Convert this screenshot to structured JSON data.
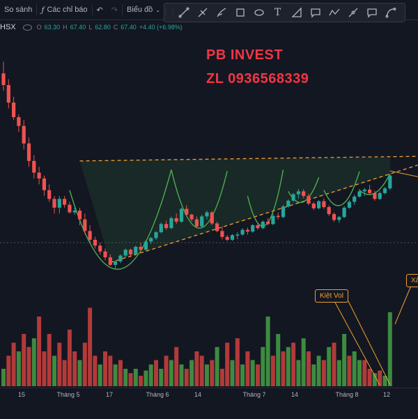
{
  "toolbar": {
    "compare_label": "So sánh",
    "indicators_label": "Các chỉ báo",
    "chart_type_label": "Biểu đồ"
  },
  "legend": {
    "symbol": "HSX",
    "open_key": "O",
    "open": "63.30",
    "high_key": "H",
    "high": "67.40",
    "low_key": "L",
    "low": "62.80",
    "close_key": "C",
    "close": "67.40",
    "change": "+4.40 (+6.98%)"
  },
  "watermark": {
    "line1": "PB INVEST",
    "line2": "ZL 0936568339"
  },
  "annotations": {
    "kiet_vol": "Kiệt Vol",
    "xa": "Xả"
  },
  "xaxis": [
    "15",
    "Tháng 5",
    "17",
    "Tháng 6",
    "14",
    "Tháng 7",
    "14",
    "Tháng 8",
    "12"
  ],
  "colors": {
    "up": "#26a69a",
    "down": "#ef5350",
    "vol_up": "#3d8b40",
    "vol_down": "#b33a3a",
    "trend": "#f0a030",
    "arc": "#4caf50"
  },
  "chart_data": {
    "type": "candlestick",
    "price_range": [
      40,
      80
    ],
    "candles": [
      [
        74,
        76,
        71,
        72
      ],
      [
        72,
        73,
        68,
        69
      ],
      [
        69,
        70,
        66,
        66.5
      ],
      [
        66.5,
        67,
        64,
        65
      ],
      [
        65,
        66,
        61,
        62
      ],
      [
        62,
        63,
        58,
        59
      ],
      [
        59,
        60,
        56,
        57
      ],
      [
        57,
        58,
        55,
        56
      ],
      [
        56,
        56.5,
        53,
        54
      ],
      [
        54,
        55,
        52,
        52.5
      ],
      [
        52.5,
        53,
        50,
        51
      ],
      [
        51,
        53,
        50,
        52.5
      ],
      [
        52.5,
        53,
        51,
        51.5
      ],
      [
        51.5,
        52,
        50,
        50.2
      ],
      [
        50.2,
        51,
        49.8,
        50.5
      ],
      [
        50.5,
        51,
        48,
        49
      ],
      [
        49,
        50,
        46.5,
        47
      ],
      [
        47,
        48,
        45,
        45.5
      ],
      [
        45.5,
        46,
        44,
        44.5
      ],
      [
        44.5,
        45,
        43,
        43.5
      ],
      [
        43.5,
        44,
        42,
        42.5
      ],
      [
        42.5,
        43,
        41,
        41.2
      ],
      [
        41.2,
        42,
        40.5,
        41.8
      ],
      [
        41.8,
        43,
        41.5,
        42.8
      ],
      [
        42.8,
        44,
        42.5,
        43.8
      ],
      [
        43.8,
        44,
        42.5,
        43
      ],
      [
        43,
        44.5,
        42.8,
        44.3
      ],
      [
        44.3,
        45,
        43.5,
        43.8
      ],
      [
        43.8,
        45.5,
        43.6,
        45.2
      ],
      [
        45.2,
        46,
        44.8,
        45.8
      ],
      [
        45.8,
        47,
        45.5,
        46.8
      ],
      [
        46.8,
        48.5,
        46.6,
        48.2
      ],
      [
        48.2,
        48.8,
        47.2,
        47.5
      ],
      [
        47.5,
        49.5,
        47.3,
        49.2
      ],
      [
        49.2,
        50,
        48.2,
        48.6
      ],
      [
        48.6,
        51,
        48.4,
        50.8
      ],
      [
        50.8,
        51.4,
        49.6,
        49.8
      ],
      [
        49.8,
        50,
        48.6,
        49
      ],
      [
        49,
        49.5,
        47.5,
        47.8
      ],
      [
        47.8,
        49.8,
        47.6,
        49.5
      ],
      [
        49.5,
        50.5,
        49,
        50.2
      ],
      [
        50.2,
        50.4,
        48,
        48.3
      ],
      [
        48.3,
        48.6,
        46.8,
        47
      ],
      [
        47,
        47.8,
        45.6,
        46
      ],
      [
        46,
        46.3,
        45.3,
        45.5
      ],
      [
        45.5,
        46.5,
        45.3,
        46.3
      ],
      [
        46.3,
        46.8,
        45.6,
        46.4
      ],
      [
        46.4,
        47.5,
        46.2,
        47.2
      ],
      [
        47.2,
        47.6,
        46.4,
        46.9
      ],
      [
        46.9,
        48.2,
        46.7,
        48
      ],
      [
        48,
        48.4,
        47.2,
        47.5
      ],
      [
        47.5,
        48.8,
        47.3,
        48.6
      ],
      [
        48.6,
        49.2,
        48,
        48.2
      ],
      [
        48.2,
        50,
        48,
        49.6
      ],
      [
        49.6,
        50.2,
        49,
        49.4
      ],
      [
        49.4,
        51.5,
        49.2,
        51.2
      ],
      [
        51.2,
        52.4,
        51,
        52.2
      ],
      [
        52.2,
        53.5,
        52,
        53.3
      ],
      [
        53.3,
        54.2,
        52.6,
        53.8
      ],
      [
        53.8,
        54.2,
        52.6,
        53
      ],
      [
        53,
        53.4,
        51.4,
        51.7
      ],
      [
        51.7,
        52,
        50.6,
        50.9
      ],
      [
        50.9,
        52.3,
        50.7,
        52.1
      ],
      [
        52.1,
        52.6,
        50.8,
        51.1
      ],
      [
        51.1,
        51.4,
        49.6,
        49.9
      ],
      [
        49.9,
        50.2,
        48.6,
        48.9
      ],
      [
        48.9,
        49.6,
        48.4,
        49.4
      ],
      [
        49.4,
        51.3,
        49.2,
        51
      ],
      [
        51,
        52.3,
        50.8,
        52
      ],
      [
        52,
        53.2,
        51.5,
        52.9
      ],
      [
        52.9,
        54.2,
        52.7,
        53.8
      ],
      [
        53.8,
        54.4,
        53,
        54.1
      ],
      [
        54.1,
        54.9,
        53.2,
        53.5
      ],
      [
        53.5,
        53.9,
        52.2,
        52.5
      ],
      [
        52.5,
        53.8,
        52.3,
        53.5
      ],
      [
        53.5,
        54.6,
        53.3,
        54.3
      ],
      [
        54.3,
        56.8,
        54,
        56.5
      ]
    ],
    "volumes": [
      [
        0.2,
        1
      ],
      [
        0.35,
        0
      ],
      [
        0.5,
        0
      ],
      [
        0.4,
        1
      ],
      [
        0.6,
        0
      ],
      [
        0.45,
        0
      ],
      [
        0.55,
        1
      ],
      [
        0.8,
        0
      ],
      [
        0.4,
        0
      ],
      [
        0.6,
        0
      ],
      [
        0.35,
        1
      ],
      [
        0.5,
        0
      ],
      [
        0.3,
        0
      ],
      [
        0.65,
        0
      ],
      [
        0.4,
        0
      ],
      [
        0.3,
        1
      ],
      [
        0.5,
        0
      ],
      [
        0.9,
        0
      ],
      [
        0.35,
        0
      ],
      [
        0.25,
        1
      ],
      [
        0.4,
        0
      ],
      [
        0.35,
        0
      ],
      [
        0.25,
        1
      ],
      [
        0.3,
        0
      ],
      [
        0.2,
        1
      ],
      [
        0.15,
        0
      ],
      [
        0.2,
        1
      ],
      [
        0.12,
        0
      ],
      [
        0.18,
        1
      ],
      [
        0.25,
        1
      ],
      [
        0.3,
        0
      ],
      [
        0.2,
        1
      ],
      [
        0.35,
        0
      ],
      [
        0.3,
        1
      ],
      [
        0.45,
        0
      ],
      [
        0.25,
        1
      ],
      [
        0.2,
        0
      ],
      [
        0.3,
        1
      ],
      [
        0.4,
        0
      ],
      [
        0.35,
        0
      ],
      [
        0.25,
        1
      ],
      [
        0.3,
        0
      ],
      [
        0.45,
        1
      ],
      [
        0.2,
        0
      ],
      [
        0.5,
        0
      ],
      [
        0.3,
        1
      ],
      [
        0.55,
        0
      ],
      [
        0.25,
        1
      ],
      [
        0.4,
        0
      ],
      [
        0.3,
        1
      ],
      [
        0.25,
        0
      ],
      [
        0.45,
        1
      ],
      [
        0.8,
        1
      ],
      [
        0.35,
        0
      ],
      [
        0.6,
        1
      ],
      [
        0.4,
        0
      ],
      [
        0.45,
        1
      ],
      [
        0.5,
        0
      ],
      [
        0.3,
        1
      ],
      [
        0.55,
        1
      ],
      [
        0.4,
        0
      ],
      [
        0.25,
        1
      ],
      [
        0.35,
        1
      ],
      [
        0.3,
        0
      ],
      [
        0.45,
        1
      ],
      [
        0.5,
        0
      ],
      [
        0.3,
        1
      ],
      [
        0.6,
        1
      ],
      [
        0.35,
        0
      ],
      [
        0.4,
        1
      ],
      [
        0.3,
        1
      ],
      [
        0.3,
        0
      ],
      [
        0.2,
        0
      ],
      [
        0.15,
        1
      ],
      [
        0.18,
        0
      ],
      [
        0.12,
        1
      ],
      [
        0.85,
        1
      ]
    ]
  }
}
